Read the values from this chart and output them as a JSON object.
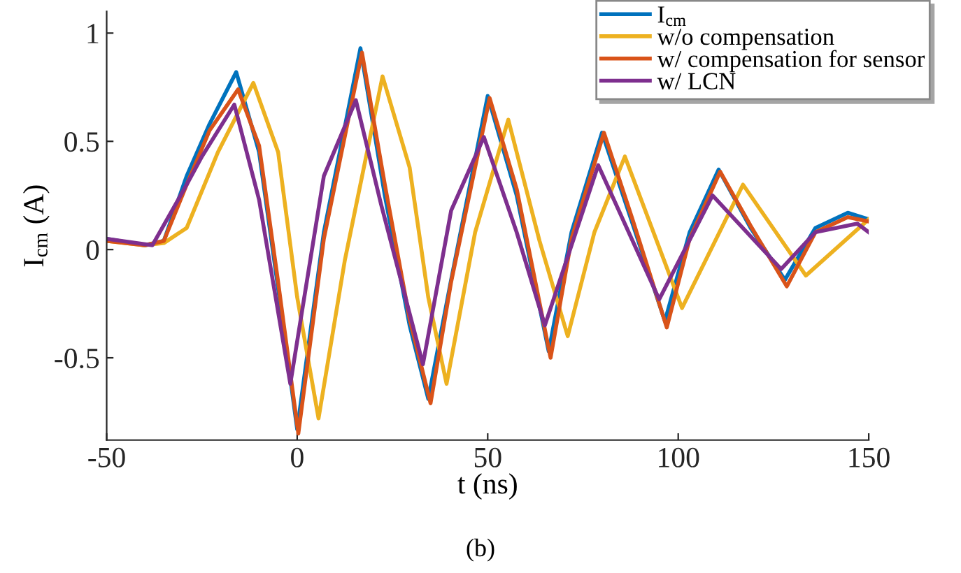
{
  "chart_data": {
    "type": "line",
    "xlabel": "t (ns)",
    "ylabel": "I$_{cm}$ (A)",
    "xlim": [
      -50,
      150
    ],
    "xticks": [
      {
        "value": -50,
        "label": "-50"
      },
      0,
      50,
      100,
      150
    ],
    "ylim": [
      -0.88,
      1.1
    ],
    "yticks": [
      {
        "value": -0.5,
        "label": "-0.5"
      },
      0,
      0.5,
      1
    ],
    "grid": false,
    "legend": "top right",
    "line_style": "solid",
    "marker": "none",
    "annotations": [
      "(b)"
    ],
    "series": [
      {
        "name": "I$_{cm}$",
        "color": "#0072bd",
        "x": [
          -50,
          -40,
          -35,
          -29,
          -23,
          -16,
          -10,
          -5,
          0,
          7,
          16.6,
          23,
          29.5,
          34.4,
          40.4,
          50,
          57.6,
          66,
          72,
          80,
          88,
          96.5,
          103,
          110.6,
          119,
          128,
          136,
          144.5,
          150
        ],
        "values": [
          0.05,
          0.02,
          0.04,
          0.34,
          0.58,
          0.82,
          0.45,
          -0.18,
          -0.83,
          0.08,
          0.93,
          0.25,
          -0.35,
          -0.69,
          -0.14,
          0.71,
          0.25,
          -0.47,
          0.08,
          0.54,
          0.12,
          -0.33,
          0.08,
          0.37,
          0.1,
          -0.14,
          0.1,
          0.17,
          0.14
        ]
      },
      {
        "name": "w/o compensation",
        "color": "#edb120",
        "x": [
          -50,
          -40,
          -35,
          -29,
          -20.8,
          -11.5,
          -5,
          0,
          5.6,
          12.5,
          22.4,
          29.5,
          34.4,
          39.2,
          46.7,
          55.4,
          63.6,
          71,
          78,
          86,
          101,
          117,
          133.5,
          150
        ],
        "values": [
          0.04,
          0.02,
          0.03,
          0.1,
          0.45,
          0.77,
          0.45,
          -0.22,
          -0.78,
          -0.05,
          0.8,
          0.38,
          -0.22,
          -0.62,
          0.08,
          0.6,
          0.04,
          -0.4,
          0.08,
          0.43,
          -0.27,
          0.3,
          -0.12,
          0.14
        ]
      },
      {
        "name": "w/ compensation for sensor",
        "color": "#d95319",
        "x": [
          -50,
          -40,
          -35,
          -29,
          -23,
          -15.5,
          -10,
          -5,
          0.3,
          7,
          17,
          23,
          29.5,
          35,
          40.4,
          50.5,
          57.6,
          66.5,
          72,
          80.5,
          88,
          97,
          103,
          111,
          119,
          128.5,
          136,
          144.5,
          150
        ],
        "values": [
          0.04,
          0.02,
          0.04,
          0.3,
          0.55,
          0.74,
          0.48,
          -0.15,
          -0.85,
          0.05,
          0.91,
          0.3,
          -0.32,
          -0.71,
          -0.15,
          0.7,
          0.28,
          -0.5,
          0.05,
          0.54,
          0.14,
          -0.36,
          0.05,
          0.36,
          0.11,
          -0.17,
          0.08,
          0.15,
          0.13
        ]
      },
      {
        "name": "w/ LCN",
        "color": "#7e2f8e",
        "x": [
          -50,
          -38,
          -29,
          -25,
          -16.5,
          -10,
          -1.8,
          7,
          15.4,
          22,
          33,
          40.4,
          49,
          57.6,
          65,
          79,
          95,
          109,
          127,
          136,
          147,
          150
        ],
        "values": [
          0.05,
          0.02,
          0.3,
          0.43,
          0.67,
          0.23,
          -0.62,
          0.34,
          0.69,
          0.21,
          -0.53,
          0.18,
          0.52,
          0.08,
          -0.35,
          0.39,
          -0.23,
          0.25,
          -0.09,
          0.08,
          0.12,
          0.08
        ]
      }
    ]
  }
}
